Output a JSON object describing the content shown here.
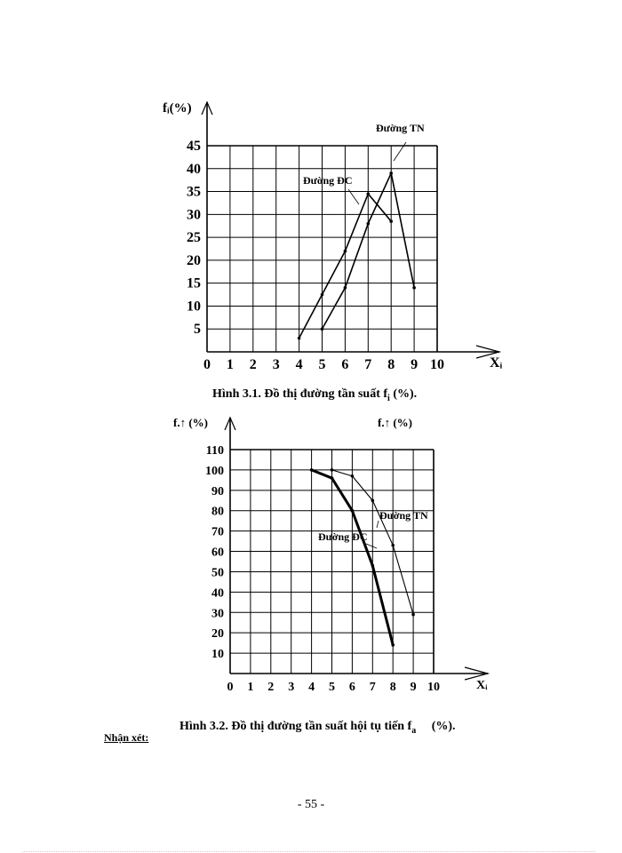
{
  "figures": [
    {
      "caption": "Hình 3.1. Đồ thị đường tần suất f",
      "caption_sub": "i",
      "caption_tail": " (%).",
      "ylabel": "fᵢ(%)",
      "xlabel": "Xᵢ",
      "series_labels": [
        "Đường TN",
        "Đường ĐC"
      ]
    },
    {
      "caption": "Hình 3.2. Đồ thị đường tần suất hội tụ tiến f",
      "caption_sub": "a",
      "caption_tail": "     (%).",
      "ylabel": "f.↑ (%)",
      "ylabel_right": "f.↑ (%)",
      "xlabel": "Xᵢ",
      "series_labels": [
        "Đường TN",
        "Đường ĐC"
      ]
    }
  ],
  "remark_label": "Nhận xét:",
  "page_number": "- 55 -",
  "chart_data": [
    {
      "type": "line",
      "title": "Hình 3.1. Đồ thị đường tần suất fi (%)",
      "xlabel": "Xi",
      "ylabel": "fi(%)",
      "x_ticks": [
        0,
        1,
        2,
        3,
        4,
        5,
        6,
        7,
        8,
        9,
        10
      ],
      "y_ticks": [
        5,
        10,
        15,
        20,
        25,
        30,
        35,
        40,
        45
      ],
      "xlim": [
        0,
        10
      ],
      "ylim": [
        0,
        45
      ],
      "grid": true,
      "series": [
        {
          "name": "Đường ĐC",
          "x": [
            4,
            5,
            6,
            7,
            8
          ],
          "values": [
            3,
            12.5,
            22,
            34.5,
            28.5
          ]
        },
        {
          "name": "Đường TN",
          "x": [
            5,
            6,
            7,
            8,
            9
          ],
          "values": [
            5,
            14,
            28,
            39,
            14
          ]
        }
      ]
    },
    {
      "type": "line",
      "title": "Hình 3.2. Đồ thị đường tần suất hội tụ tiến fa (%)",
      "xlabel": "Xi",
      "ylabel": "f↑ (%)",
      "x_ticks": [
        0,
        1,
        2,
        3,
        4,
        5,
        6,
        7,
        8,
        9,
        10
      ],
      "y_ticks": [
        10,
        20,
        30,
        40,
        50,
        60,
        70,
        80,
        90,
        100,
        110
      ],
      "xlim": [
        0,
        10
      ],
      "ylim": [
        0,
        110
      ],
      "grid": true,
      "series": [
        {
          "name": "Đường ĐC",
          "x": [
            4,
            5,
            6,
            7,
            8
          ],
          "values": [
            100,
            96,
            80,
            53,
            14
          ]
        },
        {
          "name": "Đường TN",
          "x": [
            5,
            6,
            7,
            8,
            9
          ],
          "values": [
            100,
            97,
            85,
            63,
            29
          ]
        }
      ]
    }
  ]
}
